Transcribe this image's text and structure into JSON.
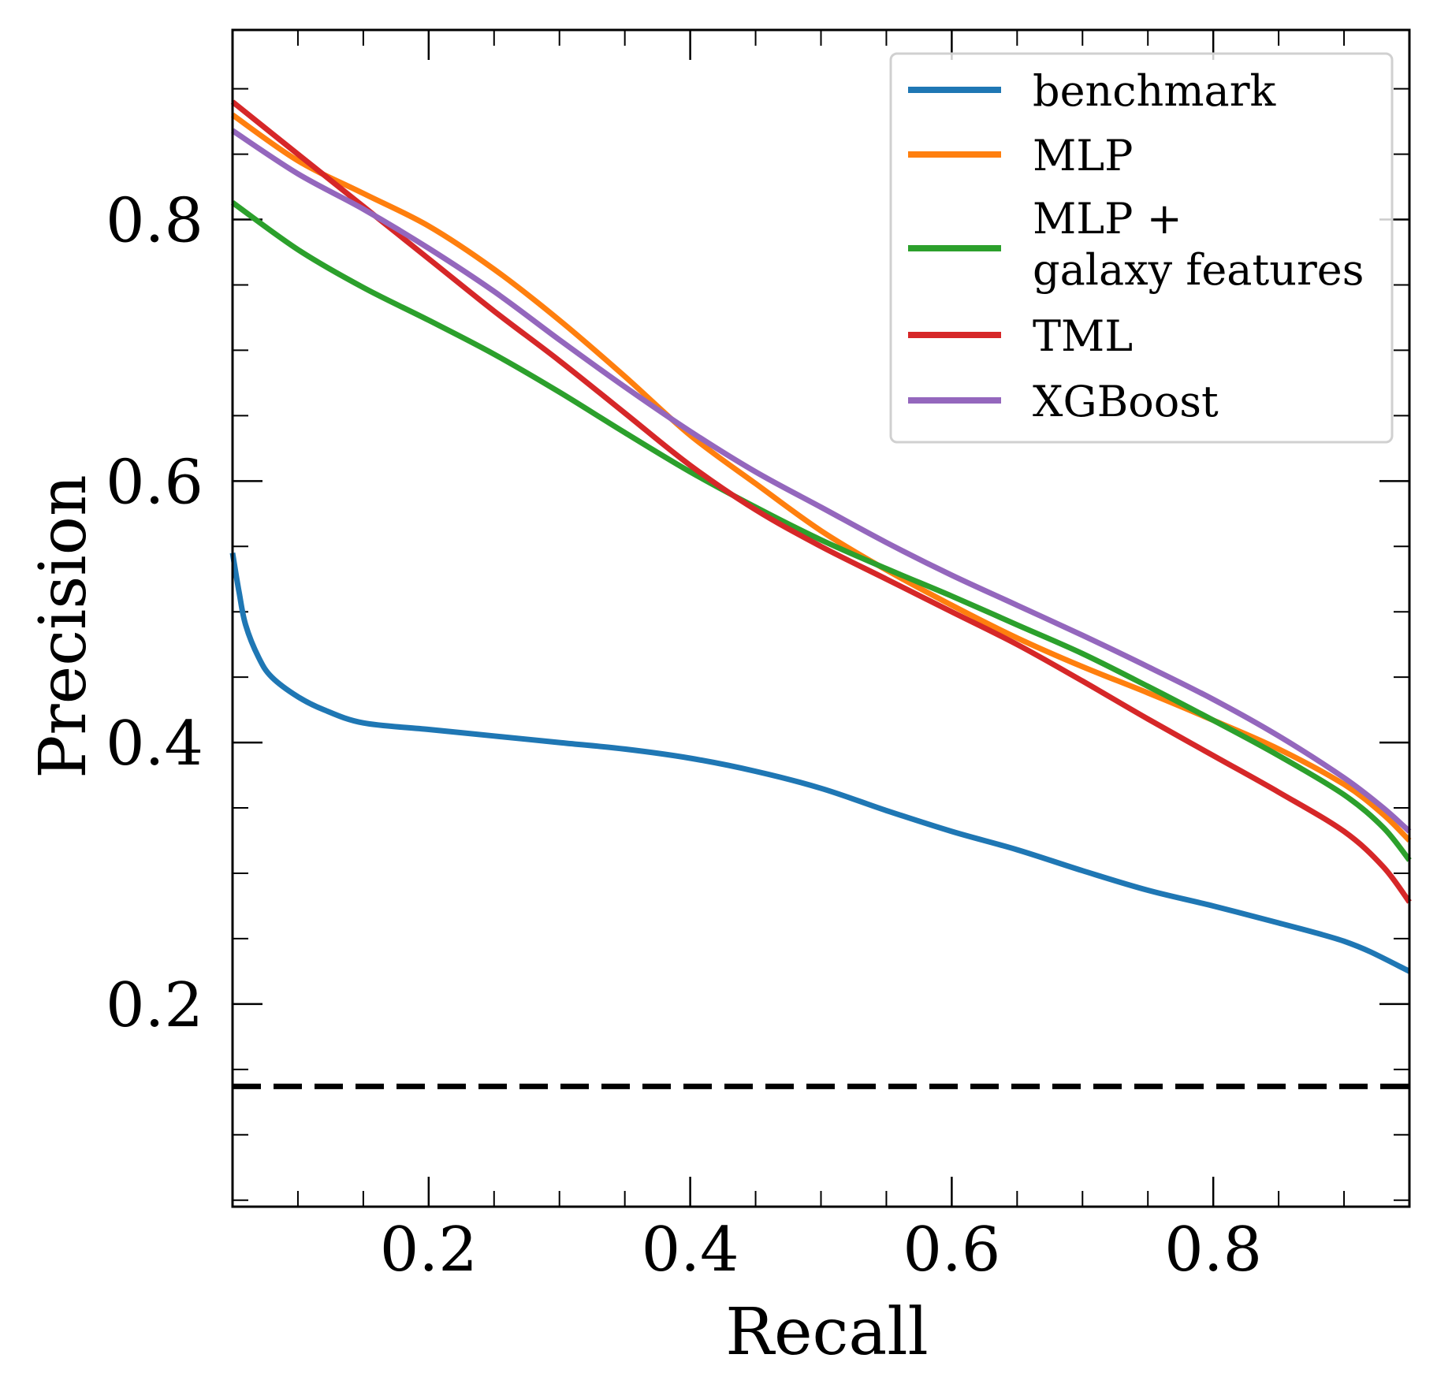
{
  "chart_data": {
    "type": "line",
    "title": "",
    "xlabel": "Recall",
    "ylabel": "Precision",
    "xlim": [
      0.05,
      0.95
    ],
    "ylim": [
      0.045,
      0.945
    ],
    "xticks": [
      0.2,
      0.4,
      0.6,
      0.8
    ],
    "xtick_labels": [
      "0.2",
      "0.4",
      "0.6",
      "0.8"
    ],
    "yticks": [
      0.2,
      0.4,
      0.6,
      0.8
    ],
    "ytick_labels": [
      "0.2",
      "0.4",
      "0.6",
      "0.8"
    ],
    "minor_step": 0.05,
    "grid": false,
    "legend_position": "top-right",
    "baseline": {
      "value": 0.137,
      "style": "dashed",
      "color": "#000000"
    },
    "series": [
      {
        "name": "benchmark",
        "color": "#1f77b4",
        "x": [
          0.05,
          0.055,
          0.06,
          0.07,
          0.08,
          0.1,
          0.12,
          0.15,
          0.2,
          0.25,
          0.3,
          0.35,
          0.4,
          0.45,
          0.5,
          0.55,
          0.6,
          0.65,
          0.7,
          0.75,
          0.8,
          0.85,
          0.88,
          0.9,
          0.92,
          0.95
        ],
        "y": [
          0.545,
          0.515,
          0.49,
          0.465,
          0.45,
          0.435,
          0.425,
          0.415,
          0.41,
          0.405,
          0.4,
          0.395,
          0.388,
          0.378,
          0.365,
          0.348,
          0.332,
          0.318,
          0.302,
          0.287,
          0.275,
          0.262,
          0.254,
          0.248,
          0.24,
          0.225
        ]
      },
      {
        "name": "MLP",
        "color": "#ff7f0e",
        "x": [
          0.05,
          0.1,
          0.15,
          0.2,
          0.25,
          0.3,
          0.35,
          0.4,
          0.45,
          0.5,
          0.55,
          0.6,
          0.65,
          0.7,
          0.75,
          0.8,
          0.85,
          0.9,
          0.93,
          0.95
        ],
        "y": [
          0.88,
          0.845,
          0.82,
          0.795,
          0.762,
          0.723,
          0.68,
          0.635,
          0.598,
          0.562,
          0.532,
          0.505,
          0.48,
          0.458,
          0.438,
          0.417,
          0.395,
          0.368,
          0.345,
          0.325
        ]
      },
      {
        "name": "MLP + galaxy features",
        "color": "#2ca02c",
        "x": [
          0.05,
          0.1,
          0.15,
          0.2,
          0.25,
          0.3,
          0.35,
          0.4,
          0.45,
          0.5,
          0.55,
          0.6,
          0.65,
          0.7,
          0.75,
          0.8,
          0.85,
          0.9,
          0.93,
          0.95
        ],
        "y": [
          0.813,
          0.777,
          0.748,
          0.723,
          0.697,
          0.668,
          0.637,
          0.607,
          0.58,
          0.555,
          0.533,
          0.512,
          0.49,
          0.468,
          0.443,
          0.417,
          0.39,
          0.36,
          0.335,
          0.31
        ]
      },
      {
        "name": "TML",
        "color": "#d62728",
        "x": [
          0.05,
          0.1,
          0.15,
          0.2,
          0.25,
          0.3,
          0.35,
          0.4,
          0.45,
          0.5,
          0.55,
          0.6,
          0.65,
          0.7,
          0.75,
          0.8,
          0.85,
          0.9,
          0.93,
          0.95
        ],
        "y": [
          0.89,
          0.85,
          0.81,
          0.77,
          0.73,
          0.692,
          0.652,
          0.612,
          0.578,
          0.55,
          0.525,
          0.5,
          0.475,
          0.447,
          0.418,
          0.39,
          0.362,
          0.332,
          0.305,
          0.278
        ]
      },
      {
        "name": "XGBoost",
        "color": "#9467bd",
        "x": [
          0.05,
          0.1,
          0.15,
          0.2,
          0.25,
          0.3,
          0.35,
          0.4,
          0.45,
          0.5,
          0.55,
          0.6,
          0.65,
          0.7,
          0.75,
          0.8,
          0.85,
          0.9,
          0.93,
          0.95
        ],
        "y": [
          0.868,
          0.835,
          0.808,
          0.778,
          0.745,
          0.708,
          0.672,
          0.638,
          0.607,
          0.58,
          0.553,
          0.528,
          0.505,
          0.482,
          0.458,
          0.433,
          0.405,
          0.373,
          0.35,
          0.332
        ]
      }
    ]
  },
  "legend": {
    "items": [
      {
        "label": "benchmark",
        "color": "#1f77b4"
      },
      {
        "label": "MLP",
        "color": "#ff7f0e"
      },
      {
        "label_line1": "MLP +",
        "label_line2": "galaxy features",
        "color": "#2ca02c"
      },
      {
        "label": "TML",
        "color": "#d62728"
      },
      {
        "label": "XGBoost",
        "color": "#9467bd"
      }
    ]
  }
}
